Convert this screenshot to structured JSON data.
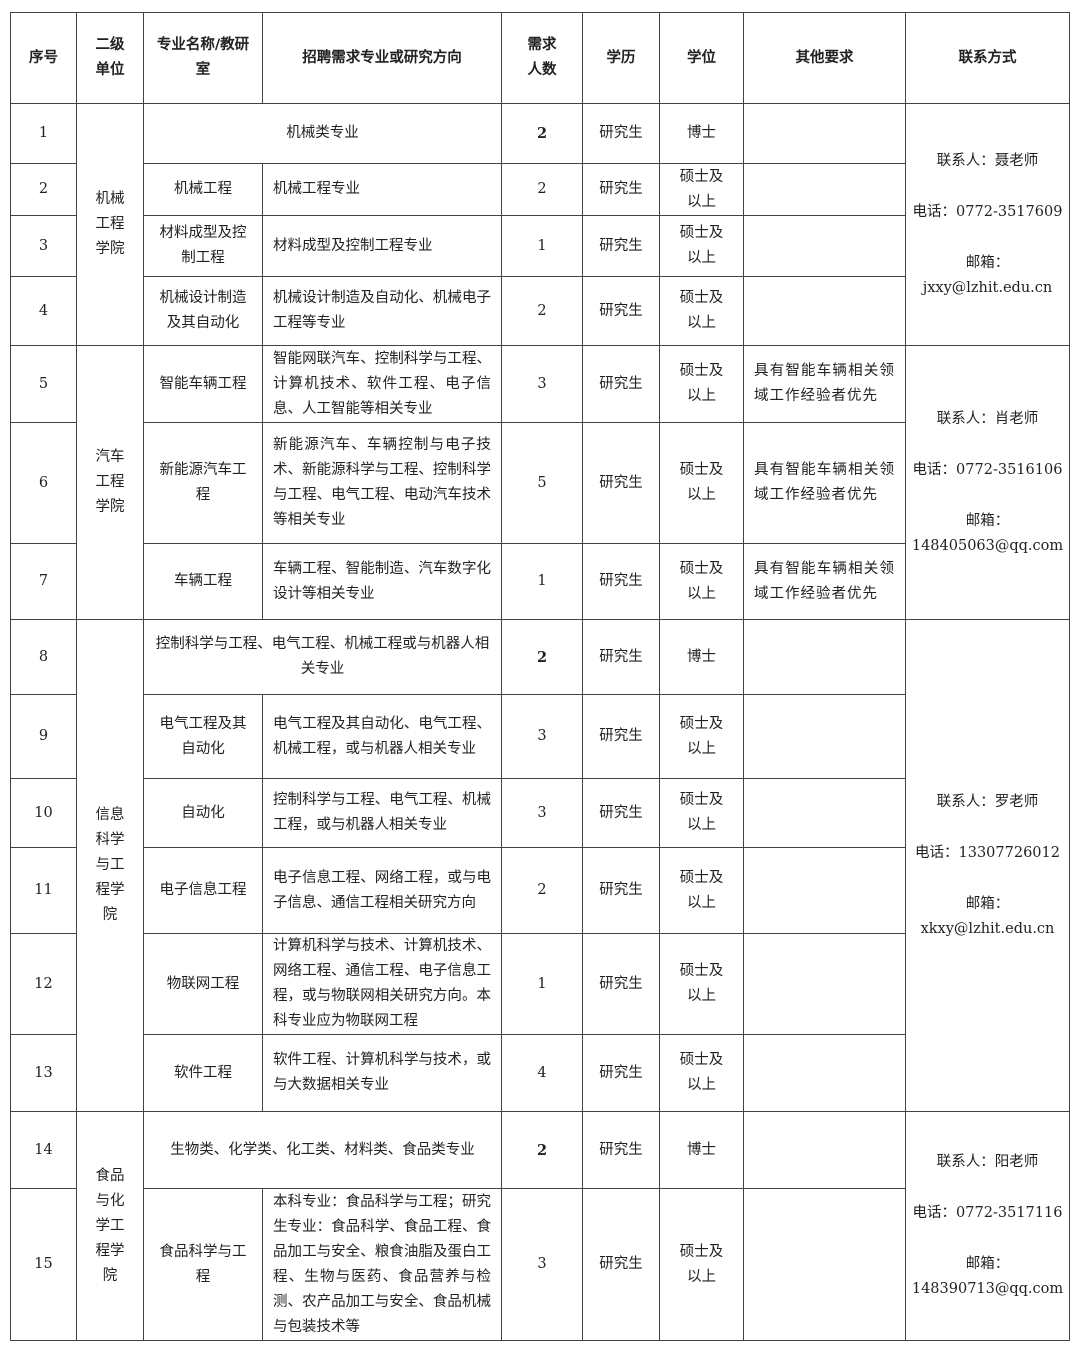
{
  "headers": [
    "序号",
    "二级单位",
    "专业名称/教研室",
    "招聘需求专业或研究方向",
    "需求人数",
    "学历",
    "学位",
    "其他要求",
    "联系方式"
  ],
  "groups": [
    {
      "unit": "机械工程学院",
      "contact": {
        "person": "联系人：聂老师",
        "phone": "电话：0772-3517609",
        "email_label": "邮箱：",
        "email": "jxxy@lzhit.edu.cn"
      },
      "rows": [
        {
          "no": "1",
          "major": "",
          "direction": "机械类专业",
          "count": "2",
          "edu": "研究生",
          "degree": "博士",
          "other": "",
          "merged": true
        },
        {
          "no": "2",
          "major": "机械工程",
          "direction": "机械工程专业",
          "count": "2",
          "edu": "研究生",
          "degree": "硕士及以上",
          "other": ""
        },
        {
          "no": "3",
          "major": "材料成型及控制工程",
          "direction": "材料成型及控制工程专业",
          "count": "1",
          "edu": "研究生",
          "degree": "硕士及以上",
          "other": ""
        },
        {
          "no": "4",
          "major": "机械设计制造及其自动化",
          "direction": "机械设计制造及自动化、机械电子工程等专业",
          "count": "2",
          "edu": "研究生",
          "degree": "硕士及以上",
          "other": ""
        }
      ]
    },
    {
      "unit": "汽车工程学院",
      "contact": {
        "person": "联系人：肖老师",
        "phone": "电话：0772-3516106",
        "email_label": "邮箱：",
        "email": "148405063@qq.com"
      },
      "rows": [
        {
          "no": "5",
          "major": "智能车辆工程",
          "direction": "智能网联汽车、控制科学与工程、计算机技术、软件工程、电子信息、人工智能等相关专业",
          "count": "3",
          "edu": "研究生",
          "degree": "硕士及以上",
          "other": "具有智能车辆相关领域工作经验者优先"
        },
        {
          "no": "6",
          "major": "新能源汽车工程",
          "direction": "新能源汽车、车辆控制与电子技术、新能源科学与工程、控制科学与工程、电气工程、电动汽车技术等相关专业",
          "count": "5",
          "edu": "研究生",
          "degree": "硕士及以上",
          "other": "具有智能车辆相关领域工作经验者优先"
        },
        {
          "no": "7",
          "major": "车辆工程",
          "direction": "车辆工程、智能制造、汽车数字化设计等相关专业",
          "count": "1",
          "edu": "研究生",
          "degree": "硕士及以上",
          "other": "具有智能车辆相关领域工作经验者优先"
        }
      ]
    },
    {
      "unit": "信息科学与工程学院",
      "contact": {
        "person": "联系人：罗老师",
        "phone": "电话：13307726012",
        "email_label": "邮箱：",
        "email": "xkxy@lzhit.edu.cn"
      },
      "rows": [
        {
          "no": "8",
          "major": "",
          "direction": "控制科学与工程、电气工程、机械工程或与机器人相关专业",
          "count": "2",
          "edu": "研究生",
          "degree": "博士",
          "other": "",
          "merged": true
        },
        {
          "no": "9",
          "major": "电气工程及其自动化",
          "direction": "电气工程及其自动化、电气工程、机械工程，或与机器人相关专业",
          "count": "3",
          "edu": "研究生",
          "degree": "硕士及以上",
          "other": ""
        },
        {
          "no": "10",
          "major": "自动化",
          "direction": "控制科学与工程、电气工程、机械工程，或与机器人相关专业",
          "count": "3",
          "edu": "研究生",
          "degree": "硕士及以上",
          "other": ""
        },
        {
          "no": "11",
          "major": "电子信息工程",
          "direction": "电子信息工程、网络工程，或与电子信息、通信工程相关研究方向",
          "count": "2",
          "edu": "研究生",
          "degree": "硕士及以上",
          "other": ""
        },
        {
          "no": "12",
          "major": "物联网工程",
          "direction": "计算机科学与技术、计算机技术、网络工程、通信工程、电子信息工程，或与物联网相关研究方向。本科专业应为物联网工程",
          "count": "1",
          "edu": "研究生",
          "degree": "硕士及以上",
          "other": ""
        },
        {
          "no": "13",
          "major": "软件工程",
          "direction": "软件工程、计算机科学与技术，或与大数据相关专业",
          "count": "4",
          "edu": "研究生",
          "degree": "硕士及以上",
          "other": ""
        }
      ]
    },
    {
      "unit": "食品与化学工程学院",
      "contact": {
        "person": "联系人：阳老师",
        "phone": "电话：0772-3517116",
        "email_label": "邮箱：",
        "email": "148390713@qq.com"
      },
      "rows": [
        {
          "no": "14",
          "major": "",
          "direction": "生物类、化学类、化工类、材料类、食品类专业",
          "count": "2",
          "edu": "研究生",
          "degree": "博士",
          "other": "",
          "merged": true
        },
        {
          "no": "15",
          "major": "食品科学与工程",
          "direction": "本科专业：食品科学与工程；研究生专业：食品科学、食品工程、食品加工与安全、粮食油脂及蛋白工程、生物与医药、食品营养与检测、农产品加工与安全、食品机械与包装技术等",
          "count": "3",
          "edu": "研究生",
          "degree": "硕士及以上",
          "other": ""
        }
      ]
    }
  ]
}
